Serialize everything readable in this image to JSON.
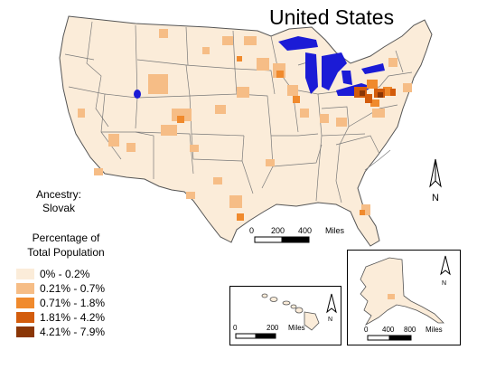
{
  "title": "United States",
  "ancestry": {
    "line1": "Ancestry:",
    "line2": "Slovak"
  },
  "legend": {
    "title_line1": "Percentage of",
    "title_line2": "Total Population",
    "classes": [
      {
        "label": "0% - 0.2%",
        "color": "#fbecd9"
      },
      {
        "label": "0.21% - 0.7%",
        "color": "#f6bd86"
      },
      {
        "label": "0.71% - 1.8%",
        "color": "#f08a2d"
      },
      {
        "label": "1.81% - 4.2%",
        "color": "#d35c0c"
      },
      {
        "label": "4.21% - 7.9%",
        "color": "#8a3606"
      }
    ]
  },
  "scales": {
    "main": {
      "labels": [
        "0",
        "200",
        "400",
        "Miles"
      ]
    },
    "hawaii": {
      "labels": [
        "0",
        "200",
        "Miles"
      ]
    },
    "alaska": {
      "labels": [
        "0",
        "400",
        "800",
        "Miles"
      ]
    }
  },
  "north_arrows": {
    "label": "N"
  },
  "colors": {
    "water": "#1b1bd6",
    "border": "#6b6b6b",
    "base": "#fbecd9"
  }
}
